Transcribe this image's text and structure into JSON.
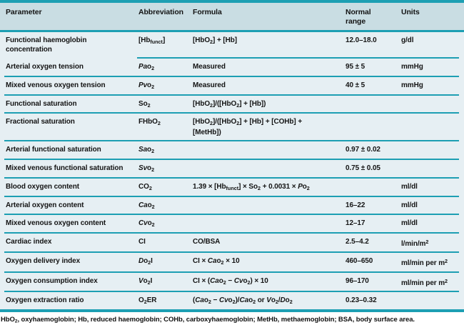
{
  "colors": {
    "accent_teal": "#1d9fb3",
    "header_background": "#c9dde3",
    "body_background": "#e6eff3",
    "text": "#141414"
  },
  "table": {
    "columns": [
      "Parameter",
      "Abbreviation",
      "Formula",
      "Normal\nrange",
      "Units"
    ],
    "rows": [
      {
        "parameter": "Functional haemoglobin\nconcentration",
        "abbr_html": "[Hb<sub>funct</sub>]",
        "formula_html": "[HbO<sub>2</sub>] + [Hb]",
        "normal_range": "12.0–18.0",
        "units_html": "g/dl"
      },
      {
        "parameter": "Arterial oxygen tension",
        "abbr_html": "<i>Pa</i>o<sub>2</sub>",
        "formula_html": "Measured",
        "normal_range": "95 ± 5",
        "units_html": "mmHg"
      },
      {
        "parameter": "Mixed venous oxygen tension",
        "abbr_html": "<i>Pv</i>o<sub>2</sub>",
        "formula_html": "Measured",
        "normal_range": "40 ± 5",
        "units_html": "mmHg"
      },
      {
        "parameter": "Functional saturation",
        "abbr_html": "So<sub>2</sub>",
        "formula_html": "[HbO<sub>2</sub>]/([HbO<sub>2</sub>] + [Hb])",
        "normal_range": "",
        "units_html": ""
      },
      {
        "parameter": "Fractional saturation",
        "abbr_html": "FHbO<sub>2</sub>",
        "formula_html": "[HbO<sub>2</sub>]/([HbO<sub>2</sub>] + [Hb] + [COHb] +\n[MetHb])",
        "normal_range": "",
        "units_html": ""
      },
      {
        "parameter": "Arterial functional saturation",
        "abbr_html": "<i>Sa</i>o<sub>2</sub>",
        "formula_html": "",
        "normal_range": "0.97 ± 0.02",
        "units_html": ""
      },
      {
        "parameter": "Mixed venous functional saturation",
        "abbr_html": "<i>Sv</i>o<sub>2</sub>",
        "formula_html": "",
        "normal_range": "0.75 ± 0.05",
        "units_html": ""
      },
      {
        "parameter": "Blood oxygen content",
        "abbr_html": "CO<sub>2</sub>",
        "formula_html": "1.39 × [Hb<sub>funct</sub>] × So<sub>2</sub> + 0.0031 × <i>P</i>o<sub>2</sub>",
        "normal_range": "",
        "units_html": "ml/dl"
      },
      {
        "parameter": "Arterial oxygen content",
        "abbr_html": "<i>Ca</i>o<sub>2</sub>",
        "formula_html": "",
        "normal_range": "16–22",
        "units_html": "ml/dl"
      },
      {
        "parameter": "Mixed venous oxygen content",
        "abbr_html": "<i>Cv</i>o<sub>2</sub>",
        "formula_html": "",
        "normal_range": "12–17",
        "units_html": "ml/dl"
      },
      {
        "parameter": "Cardiac index",
        "abbr_html": "CI",
        "formula_html": "CO/BSA",
        "normal_range": "2.5–4.2",
        "units_html": "l/min/m<sup>2</sup>"
      },
      {
        "parameter": "Oxygen delivery index",
        "abbr_html": "<i>D</i>o<sub>2</sub>I",
        "formula_html": "CI × <i>Ca</i>o<sub>2</sub> × 10",
        "normal_range": "460–650",
        "units_html": "ml/min per m<sup>2</sup>"
      },
      {
        "parameter": "Oxygen consumption index",
        "abbr_html": "<i>V</i>o<sub>2</sub>I",
        "formula_html": "CI × (<i>Ca</i>o<sub>2</sub> − <i>Cv</i>o<sub>2</sub>) × 10",
        "normal_range": "96–170",
        "units_html": "ml/min per m<sup>2</sup>"
      },
      {
        "parameter": "Oxygen extraction ratio",
        "abbr_html": "O<sub>2</sub>ER",
        "formula_html": "(<i>Ca</i>o<sub>2</sub> − <i>Cv</i>o<sub>2</sub>)/<i>Ca</i>o<sub>2</sub> or <i>V</i>o<sub>2</sub>/<i>D</i>o<sub>2</sub>",
        "normal_range": "0.23–0.32",
        "units_html": ""
      }
    ]
  },
  "footnote_html": "HbO<sub>2</sub>, oxyhaemoglobin; Hb, reduced haemoglobin; COHb, carboxyhaemoglobin; MetHb, methaemoglobin; BSA, body surface area."
}
